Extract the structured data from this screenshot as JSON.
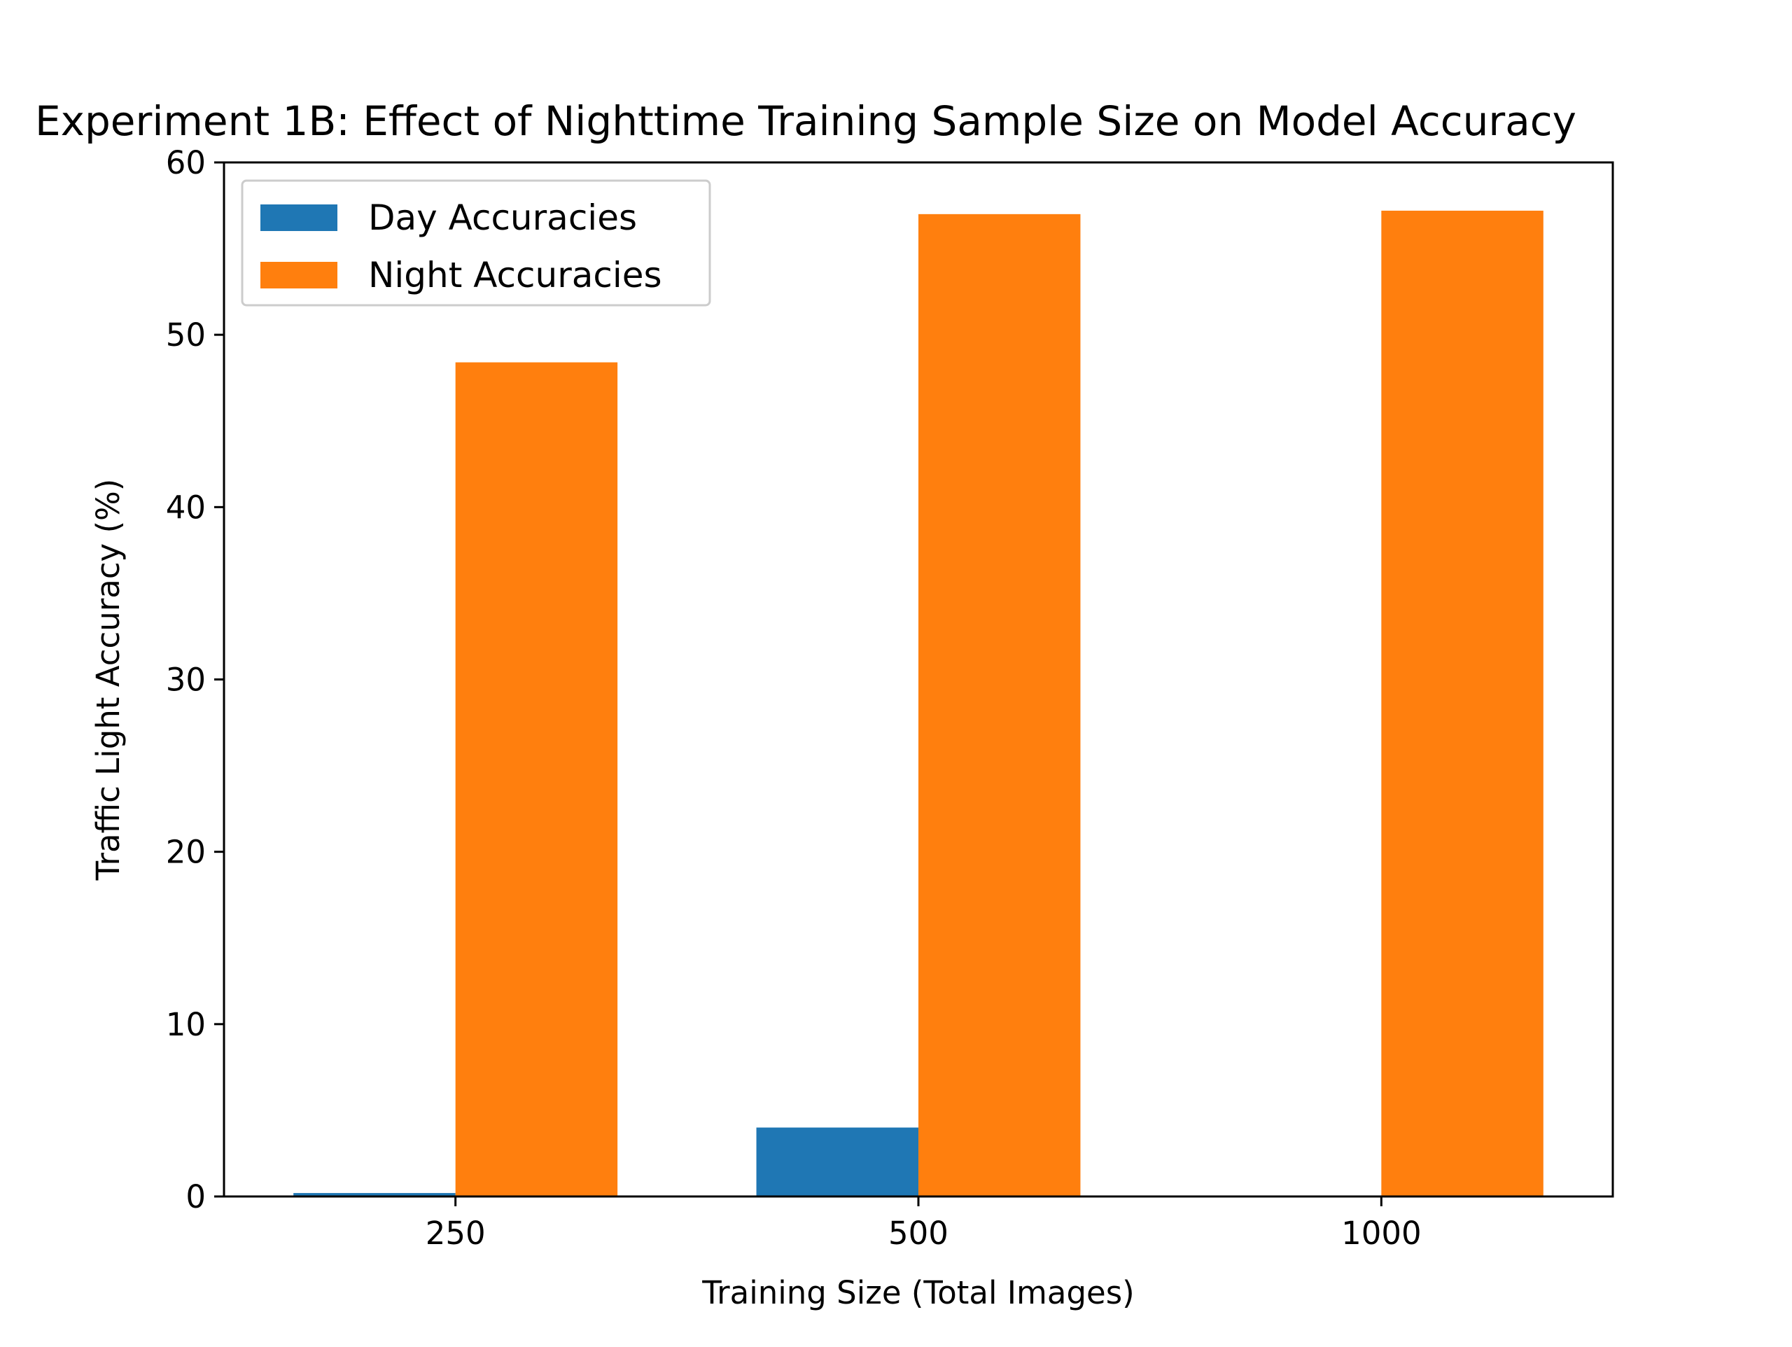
{
  "chart_data": {
    "type": "bar",
    "title": "Experiment 1B: Effect of Nighttime Training Sample Size on Model Accuracy",
    "xlabel": "Training Size (Total Images)",
    "ylabel": "Traffic Light Accuracy (%)",
    "categories": [
      "250",
      "500",
      "1000"
    ],
    "series": [
      {
        "name": "Day Accuracies",
        "color": "#1f77b4",
        "values": [
          0.2,
          4.0,
          0.0
        ]
      },
      {
        "name": "Night Accuracies",
        "color": "#ff7f0e",
        "values": [
          48.4,
          57.0,
          57.2
        ]
      }
    ],
    "ylim": [
      0,
      60
    ],
    "yticks": [
      0,
      10,
      20,
      30,
      40,
      50,
      60
    ],
    "grid": false,
    "legend": {
      "position": "top-left"
    }
  }
}
